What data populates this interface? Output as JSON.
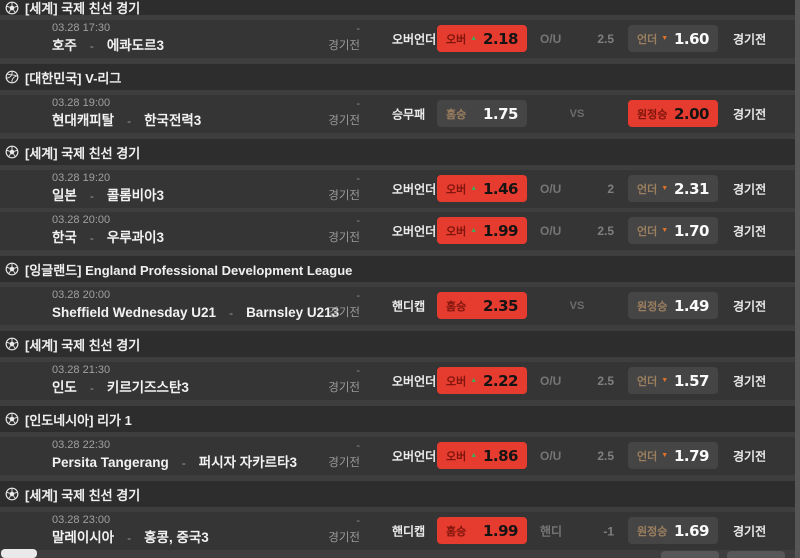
{
  "colors": {
    "accent_red": "#e63b2f",
    "up_green": "#3fae5a",
    "down_orange": "#e2722b",
    "page_bg": "#3e3e3e",
    "header_bg": "#2d2d2d",
    "row_bg": "#353535"
  },
  "sections": [
    {
      "icon": "soccer",
      "league": "[세계] 국제 친선 경기",
      "matches": [
        {
          "datetime": "03.28 17:30",
          "home": "호주",
          "separator": "-",
          "away": "에콰도르3",
          "mid_dash": "-",
          "mid_status": "경기전",
          "market": "오버언더",
          "left_button": {
            "label": "오버",
            "arrow": "up",
            "odds": "2.18",
            "style": "red"
          },
          "center": {
            "label": "O/U",
            "value": "2.5"
          },
          "right_button": {
            "label": "언더",
            "arrow": "down",
            "odds": "1.60",
            "style": "dark"
          },
          "state": "경기전"
        }
      ]
    },
    {
      "icon": "volleyball",
      "league": "[대한민국] V-리그",
      "matches": [
        {
          "datetime": "03.28 19:00",
          "home": "현대캐피탈",
          "separator": "-",
          "away": "한국전력3",
          "mid_dash": "-",
          "mid_status": "경기전",
          "market": "승무패",
          "left_button": {
            "label": "홈승",
            "arrow": "none",
            "odds": "1.75",
            "style": "dark"
          },
          "center": {
            "label": "VS",
            "value": ""
          },
          "right_button": {
            "label": "원정승",
            "arrow": "none",
            "odds": "2.00",
            "style": "red"
          },
          "state": "경기전"
        }
      ]
    },
    {
      "icon": "soccer",
      "league": "[세계] 국제 친선 경기",
      "matches": [
        {
          "datetime": "03.28 19:20",
          "home": "일본",
          "separator": "-",
          "away": "콜롬비아3",
          "mid_dash": "-",
          "mid_status": "경기전",
          "market": "오버언더",
          "left_button": {
            "label": "오버",
            "arrow": "up",
            "odds": "1.46",
            "style": "red"
          },
          "center": {
            "label": "O/U",
            "value": "2"
          },
          "right_button": {
            "label": "언더",
            "arrow": "down",
            "odds": "2.31",
            "style": "dark"
          },
          "state": "경기전"
        },
        {
          "datetime": "03.28 20:00",
          "home": "한국",
          "separator": "-",
          "away": "우루과이3",
          "mid_dash": "-",
          "mid_status": "경기전",
          "market": "오버언더",
          "left_button": {
            "label": "오버",
            "arrow": "up",
            "odds": "1.99",
            "style": "red"
          },
          "center": {
            "label": "O/U",
            "value": "2.5"
          },
          "right_button": {
            "label": "언더",
            "arrow": "down",
            "odds": "1.70",
            "style": "dark"
          },
          "state": "경기전"
        }
      ]
    },
    {
      "icon": "soccer",
      "league": "[잉글랜드] England Professional Development League",
      "matches": [
        {
          "datetime": "03.28 20:00",
          "home": "Sheffield Wednesday U21",
          "separator": "-",
          "away": "Barnsley U213",
          "mid_dash": "-",
          "mid_status": "경기전",
          "market": "핸디캡",
          "left_button": {
            "label": "홈승",
            "arrow": "none",
            "odds": "2.35",
            "style": "red"
          },
          "center": {
            "label": "VS",
            "value": ""
          },
          "right_button": {
            "label": "원정승",
            "arrow": "none",
            "odds": "1.49",
            "style": "dark"
          },
          "state": "경기전"
        }
      ]
    },
    {
      "icon": "soccer",
      "league": "[세계] 국제 친선 경기",
      "matches": [
        {
          "datetime": "03.28 21:30",
          "home": "인도",
          "separator": "-",
          "away": "키르기즈스탄3",
          "mid_dash": "-",
          "mid_status": "경기전",
          "market": "오버언더",
          "left_button": {
            "label": "오버",
            "arrow": "up",
            "odds": "2.22",
            "style": "red"
          },
          "center": {
            "label": "O/U",
            "value": "2.5"
          },
          "right_button": {
            "label": "언더",
            "arrow": "down",
            "odds": "1.57",
            "style": "dark"
          },
          "state": "경기전"
        }
      ]
    },
    {
      "icon": "soccer",
      "league": "[인도네시아] 리가 1",
      "matches": [
        {
          "datetime": "03.28 22:30",
          "home": "Persita Tangerang",
          "separator": "-",
          "away": "퍼시자 자카르타3",
          "mid_dash": "-",
          "mid_status": "경기전",
          "market": "오버언더",
          "left_button": {
            "label": "오버",
            "arrow": "up",
            "odds": "1.86",
            "style": "red"
          },
          "center": {
            "label": "O/U",
            "value": "2.5"
          },
          "right_button": {
            "label": "언더",
            "arrow": "down",
            "odds": "1.79",
            "style": "dark"
          },
          "state": "경기전"
        }
      ]
    },
    {
      "icon": "soccer",
      "league": "[세계] 국제 친선 경기",
      "matches": [
        {
          "datetime": "03.28 23:00",
          "home": "말레이시아",
          "separator": "-",
          "away": "홍콩, 중국3",
          "mid_dash": "-",
          "mid_status": "경기전",
          "market": "핸디캡",
          "left_button": {
            "label": "홈승",
            "arrow": "none",
            "odds": "1.99",
            "style": "red"
          },
          "center": {
            "label": "핸디",
            "value": "-1"
          },
          "right_button": {
            "label": "원정승",
            "arrow": "none",
            "odds": "1.69",
            "style": "dark"
          },
          "state": "경기전"
        }
      ]
    }
  ]
}
